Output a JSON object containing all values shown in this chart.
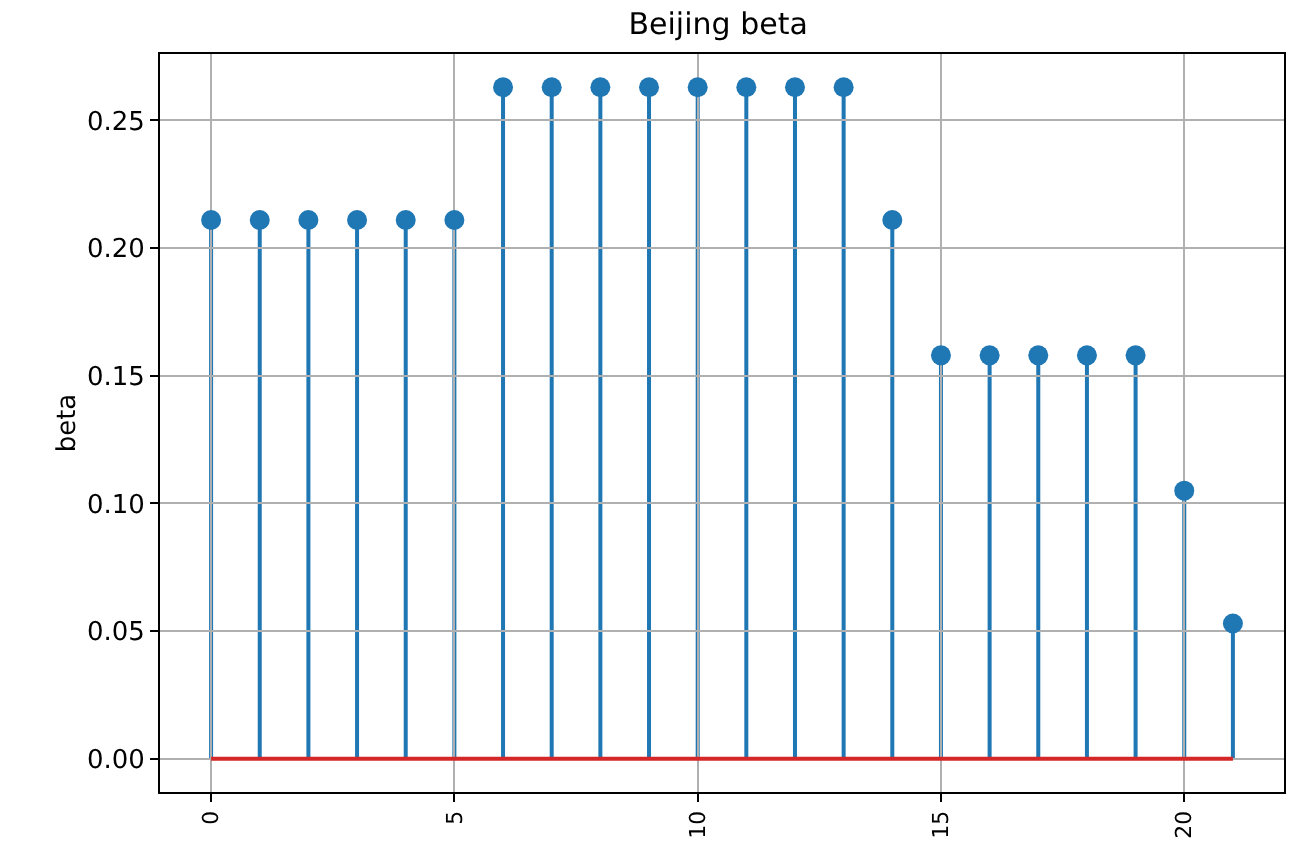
{
  "chart_data": {
    "type": "lollipop",
    "title": "Beijing beta",
    "ylabel": "beta",
    "x": [
      0,
      1,
      2,
      3,
      4,
      5,
      6,
      7,
      8,
      9,
      10,
      11,
      12,
      13,
      14,
      15,
      16,
      17,
      18,
      19,
      20,
      21
    ],
    "values": [
      0.211,
      0.211,
      0.211,
      0.211,
      0.211,
      0.211,
      0.263,
      0.263,
      0.263,
      0.263,
      0.263,
      0.263,
      0.263,
      0.263,
      0.211,
      0.158,
      0.158,
      0.158,
      0.158,
      0.158,
      0.105,
      0.053
    ],
    "color": "#1f77b4",
    "marker": "circle",
    "xlim": [
      -1.05,
      22.05
    ],
    "xticks": [
      0,
      5,
      10,
      15,
      20
    ],
    "ylim": [
      -0.013,
      0.276
    ],
    "yticks": [
      {
        "value": 0,
        "label": "0.00"
      },
      {
        "value": 0.05,
        "label": "0.05"
      },
      {
        "value": 0.1,
        "label": "0.10"
      },
      {
        "value": 0.15,
        "label": "0.15"
      },
      {
        "value": 0.2,
        "label": "0.20"
      },
      {
        "value": 0.25,
        "label": "0.25"
      }
    ],
    "ref_lines": [
      {
        "axis": "y",
        "value": 0,
        "label": null,
        "color": "#d62728"
      }
    ],
    "grid": true
  }
}
